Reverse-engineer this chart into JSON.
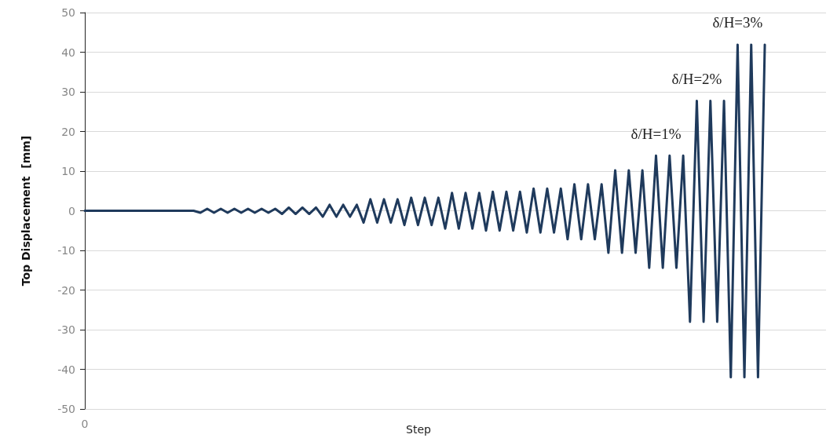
{
  "chart_data": {
    "type": "line",
    "xlabel": "Step",
    "ylabel": "Top Displacement  [mm]",
    "categories": [
      "0",
      null,
      null,
      null,
      null,
      null,
      null,
      null,
      null,
      null,
      null,
      null,
      null,
      null,
      null,
      null,
      null,
      null,
      null,
      null,
      null,
      null,
      null,
      null,
      null,
      null,
      null,
      null,
      null,
      null,
      null,
      null,
      null,
      null,
      null,
      null,
      null,
      null,
      null,
      null,
      null,
      null,
      null,
      null,
      null,
      null,
      null,
      null,
      null,
      null,
      null,
      null,
      null,
      null,
      null,
      null,
      null,
      null,
      null,
      null,
      null,
      null,
      null,
      null,
      null,
      null,
      null,
      null,
      null,
      null,
      null,
      null,
      null,
      null,
      null,
      null,
      null,
      null,
      null,
      null,
      null,
      null,
      null,
      null,
      null,
      null,
      null,
      null,
      null,
      null,
      null,
      null,
      null,
      null,
      null,
      null,
      null,
      null,
      null,
      null,
      null,
      null,
      null,
      null,
      null,
      null,
      null,
      null,
      null,
      null
    ],
    "series": [
      {
        "color": "#1f3a5c",
        "values": [
          0,
          0,
          0,
          0,
          0,
          0,
          0,
          0,
          0,
          0,
          0,
          0,
          0,
          0,
          0,
          0,
          0,
          -0.5,
          0.5,
          -0.5,
          0.5,
          -0.5,
          0.5,
          -0.5,
          0.5,
          -0.5,
          0.5,
          -0.5,
          0.5,
          -0.8,
          0.8,
          -0.8,
          0.8,
          -0.8,
          0.8,
          -1.5,
          1.5,
          -1.5,
          1.5,
          -1.5,
          1.5,
          -3,
          2.9,
          -3,
          2.9,
          -3,
          2.9,
          -3.6,
          3.3,
          -3.6,
          3.3,
          -3.6,
          3.3,
          -4.5,
          4.5,
          -4.5,
          4.5,
          -4.5,
          4.5,
          -5,
          4.8,
          -5,
          4.8,
          -5,
          4.8,
          -5.5,
          5.6,
          -5.5,
          5.6,
          -5.5,
          5.6,
          -7.2,
          6.7,
          -7.2,
          6.7,
          -7.2,
          6.7,
          -10.6,
          10.2,
          -10.6,
          10.2,
          -10.6,
          10.2,
          -14.4,
          13.9,
          -14.4,
          13.9,
          -14.4,
          13.9,
          -28,
          27.7,
          -28,
          27.7,
          -28,
          27.7,
          -42,
          41.9,
          -42,
          41.9,
          -42,
          41.9,
          null,
          null,
          null,
          null,
          null,
          null,
          null,
          null,
          null
        ]
      }
    ],
    "ylim": [
      -50,
      50
    ],
    "yticks": [
      -50,
      -40,
      -30,
      -20,
      -10,
      0,
      10,
      20,
      30,
      40,
      50
    ],
    "grid": "y",
    "marker": "none",
    "line_style": "solid",
    "annotations": [
      "δ/H=1%",
      "δ/H=2%",
      "δ/H=3%"
    ]
  }
}
